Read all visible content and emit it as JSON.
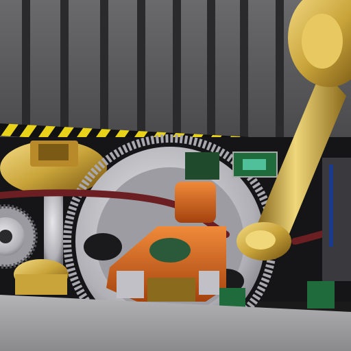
{
  "scene": {
    "kind": "3d-rendered-mechanism",
    "colors": {
      "wall": "#5a5a5c",
      "slat": "#2a2a2c",
      "hazard_yellow": "#e8d21a",
      "hazard_black": "#111111",
      "brass": "#c9a43a",
      "brass_light": "#f0d77a",
      "brass_dark": "#7a5a14",
      "steel": "#c8c8cc",
      "steel_dark": "#6e6e74",
      "orange": "#d9661c",
      "orange_dark": "#8a3a0c",
      "belt": "#6b1f22",
      "pcb_green": "#1f6b3c",
      "floor": "#9a9a9c"
    },
    "objects": [
      "slatted-wall",
      "hazard-stripe-rail",
      "large-spur-gear",
      "left-spur-gear",
      "brass-pulley-hub",
      "orange-motor-housing",
      "drive-belt",
      "brass-rod",
      "brass-disc",
      "green-circuit-boards",
      "concrete-floor"
    ]
  }
}
